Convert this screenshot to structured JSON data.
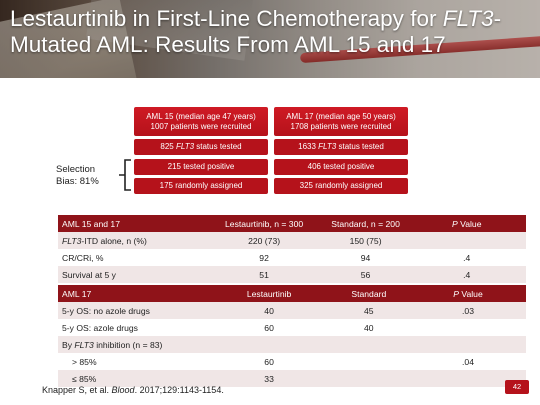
{
  "title": {
    "part1": "Lestaurtinib in First-Line Chemotherapy for ",
    "part2": "FLT3",
    "part3": "-Mutated AML: Results From AML 15 and 17"
  },
  "flow": {
    "left": {
      "head_line1": "AML 15 (median age 47 years)",
      "head_line2": "1007 patients were recruited",
      "tested_pre": "825 ",
      "tested_it": "FLT3",
      "tested_post": " status tested",
      "positive": "215 tested positive",
      "randomized": "175 randomly assigned"
    },
    "right": {
      "head_line1": "AML 17 (median age 50 years)",
      "head_line2": "1708 patients were recruited",
      "tested_pre": "1633 ",
      "tested_it": "FLT3",
      "tested_post": " status tested",
      "positive": "406 tested positive",
      "randomized": "325 randomly assigned"
    },
    "selection_bias_line1": "Selection",
    "selection_bias_line2": "Bias: 81%"
  },
  "table1": {
    "header": [
      "AML 15 and 17",
      "Lestaurtinib, n = 300",
      "Standard, n = 200"
    ],
    "header_p_it": "P",
    "header_p_rest": " Value",
    "rows": [
      {
        "label_it": "FLT3",
        "label_rest": "-ITD alone, n (%)",
        "a": "220 (73)",
        "b": "150 (75)",
        "p": ""
      },
      {
        "label_it": "",
        "label_rest": "CR/CRi, %",
        "a": "92",
        "b": "94",
        "p": ".4"
      },
      {
        "label_it": "",
        "label_rest": "Survival at 5 y",
        "a": "51",
        "b": "56",
        "p": ".4"
      }
    ]
  },
  "table2": {
    "header": [
      "AML 17",
      "Lestaurtinib",
      "Standard"
    ],
    "header_p_it": "P",
    "header_p_rest": " Value",
    "rows": [
      {
        "label": "5-y OS: no azole drugs",
        "a": "40",
        "b": "45",
        "p": ".03"
      },
      {
        "label": "5-y OS: azole drugs",
        "a": "60",
        "b": "40",
        "p": ""
      },
      {
        "label_pre": "By ",
        "label_it": "FLT3",
        "label_post": " inhibition (n = 83)",
        "a": "",
        "b": "",
        "p": ""
      },
      {
        "label": "> 85%",
        "a": "60",
        "b": "",
        "p": ".04"
      },
      {
        "label": "≤ 85%",
        "a": "33",
        "b": "",
        "p": ""
      }
    ]
  },
  "citation": {
    "authors": "Knapper S, et al. ",
    "journal": "Blood",
    "rest": ". 2017;129:1143-1154."
  },
  "page_number": "42",
  "colors": {
    "accent": "#b5121b",
    "header_row": "#8f1319",
    "zebra": "#f0e6e6"
  }
}
